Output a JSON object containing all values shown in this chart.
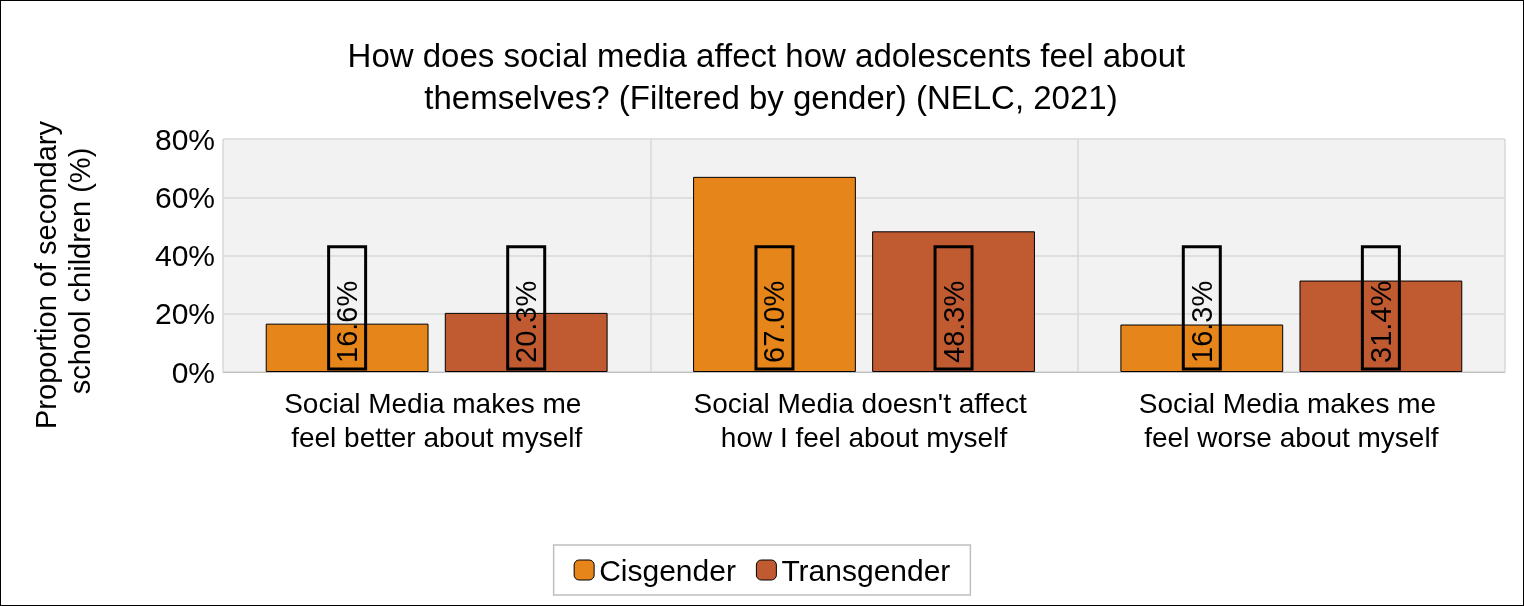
{
  "chart_data": {
    "type": "bar",
    "title": "How does social media affect how adolescents feel about themselves? (Filtered by gender) (NELC, 2021)",
    "ylabel": "Proportion of secondary school children (%)",
    "categories": [
      "Social Media makes me feel better about myself",
      "Social Media doesn't affect how I feel about myself",
      "Social Media makes me feel worse about myself"
    ],
    "series": [
      {
        "name": "Cisgender",
        "color": "#e6851a",
        "values": [
          16.6,
          67.0,
          16.3
        ],
        "value_labels": [
          "16.6%",
          "67.0%",
          "16.3%"
        ]
      },
      {
        "name": "Transgender",
        "color": "#c05a30",
        "values": [
          20.3,
          48.3,
          31.4
        ],
        "value_labels": [
          "20.3%",
          "48.3%",
          "31.4%"
        ]
      }
    ],
    "ylim": [
      0,
      80
    ],
    "yticks": [
      {
        "value": 0,
        "label": "0%"
      },
      {
        "value": 20,
        "label": "20%"
      },
      {
        "value": 40,
        "label": "40%"
      },
      {
        "value": 60,
        "label": "60%"
      },
      {
        "value": 80,
        "label": "80%"
      }
    ],
    "grid": true,
    "legend": "bottom"
  }
}
